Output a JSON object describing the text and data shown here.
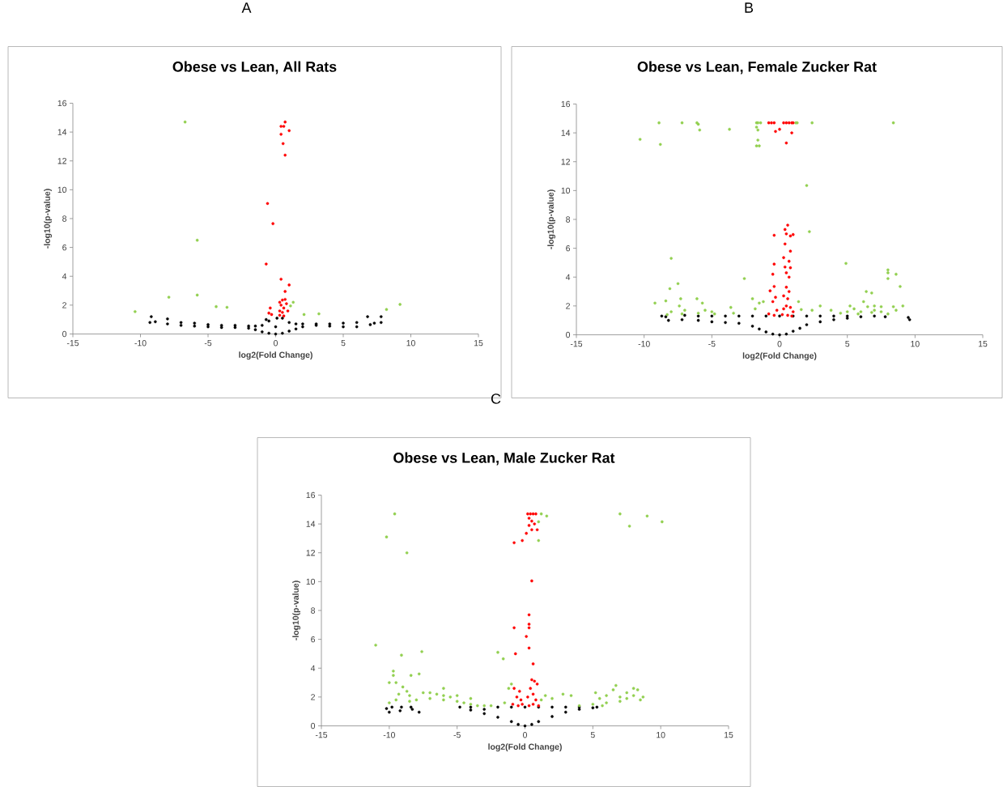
{
  "chart_data": [
    {
      "type": "scatter",
      "title": "Obese vs Lean, All Rats",
      "xlabel": "log2(Fold Change)",
      "ylabel": "-log10(p-value)",
      "annotations": [
        "A"
      ],
      "xlim": [
        -15,
        15
      ],
      "ylim": [
        0,
        16
      ],
      "xticks": [
        -15,
        -10,
        -5,
        0,
        5,
        10,
        15
      ],
      "yticks": [
        0,
        2,
        4,
        6,
        8,
        10,
        12,
        14,
        16
      ],
      "marker": "circle",
      "series": [
        {
          "color": "#000000",
          "x": [
            -9.2,
            -9.3,
            -8.9,
            -8.0,
            -8,
            -7,
            -7,
            -6,
            -6,
            -5,
            -5,
            -4,
            -4,
            -3,
            -3,
            -2,
            -2,
            -1.5,
            -1.5,
            -1,
            -1,
            -0.7,
            -0.5,
            -0.5,
            0,
            0,
            0.1,
            0.5,
            0.5,
            1,
            1,
            1.5,
            1.5,
            2,
            2,
            3,
            3,
            4,
            4,
            5,
            5,
            6,
            6,
            6.8,
            7,
            7.3,
            7.8,
            7.8
          ],
          "values": [
            1.2,
            0.8,
            0.85,
            1.05,
            0.7,
            0.6,
            0.8,
            0.55,
            0.75,
            0.5,
            0.65,
            0.45,
            0.6,
            0.45,
            0.6,
            0.4,
            0.55,
            0.3,
            0.55,
            0.15,
            0.6,
            1.0,
            0.05,
            0.9,
            0,
            0.5,
            1.1,
            0.05,
            1.1,
            0.2,
            0.8,
            0.35,
            0.7,
            0.5,
            0.7,
            0.6,
            0.7,
            0.55,
            0.7,
            0.5,
            0.75,
            0.5,
            0.8,
            1.2,
            0.65,
            0.75,
            1.2,
            0.8
          ]
        },
        {
          "color": "#92d050",
          "x": [
            -6.7,
            -5.8,
            -5.8,
            -7.9,
            -10.4,
            -4.4,
            -3.6,
            1.1,
            1.3,
            2.1,
            3.2,
            8.2,
            9.2
          ],
          "values": [
            14.7,
            6.5,
            2.7,
            2.55,
            1.55,
            1.9,
            1.85,
            1.95,
            2.2,
            1.35,
            1.4,
            1.7,
            2.05
          ]
        },
        {
          "color": "#ff0000",
          "x": [
            0.7,
            0.4,
            0.6,
            0.4,
            1.0,
            0.55,
            0.7,
            -0.6,
            -0.2,
            -0.7,
            0.4,
            1.0,
            0.7,
            0.5,
            0.3,
            0.7,
            0.4,
            0.6,
            0.3,
            0.8,
            0.5,
            0.3,
            -0.4,
            -0.5,
            -0.3,
            0.6,
            0.9
          ],
          "values": [
            14.7,
            14.4,
            14.4,
            13.85,
            14.1,
            13.2,
            12.4,
            9.05,
            7.65,
            4.85,
            3.8,
            3.4,
            2.95,
            2.35,
            2.2,
            2.4,
            2.0,
            1.8,
            1.6,
            2.1,
            1.5,
            1.3,
            1.8,
            1.45,
            1.35,
            1.25,
            1.6
          ]
        }
      ]
    },
    {
      "type": "scatter",
      "title": "Obese vs Lean, Female Zucker Rat",
      "xlabel": "log2(Fold Change)",
      "ylabel": "-log10(p-value)",
      "annotations": [
        "B"
      ],
      "xlim": [
        -15,
        15
      ],
      "ylim": [
        0,
        16
      ],
      "xticks": [
        -15,
        -10,
        -5,
        0,
        5,
        10,
        15
      ],
      "yticks": [
        0,
        2,
        4,
        6,
        8,
        10,
        12,
        14,
        16
      ],
      "marker": "circle",
      "series": [
        {
          "color": "#000000",
          "x": [
            -8.7,
            -8.4,
            -8.2,
            -7.2,
            -7,
            -6,
            -6,
            -5,
            -5,
            -4,
            -4,
            -3,
            -3,
            -2,
            -2,
            -1.5,
            -1,
            -1,
            -0.5,
            0,
            0,
            0.5,
            1,
            1,
            1.5,
            2,
            2,
            3,
            3,
            4,
            4,
            5,
            5,
            6,
            7,
            7.8,
            9.5,
            9.6
          ],
          "values": [
            1.3,
            1.25,
            1.0,
            1.05,
            1.35,
            1.0,
            1.3,
            0.9,
            1.3,
            0.85,
            1.3,
            0.8,
            1.3,
            0.6,
            1.3,
            0.4,
            0.2,
            1.3,
            0.05,
            0,
            1.3,
            0.05,
            0.25,
            1.3,
            0.45,
            0.7,
            1.3,
            0.9,
            1.3,
            1.05,
            1.3,
            1.15,
            1.3,
            1.25,
            1.3,
            1.25,
            1.2,
            1.05
          ]
        },
        {
          "color": "#92d050",
          "x": [
            -8.9,
            -7.2,
            -6.1,
            -6.0,
            -1.7,
            -1.6,
            -1.4,
            1.2,
            1.3,
            2.4,
            8.4,
            -10.3,
            -8.8,
            -5.9,
            -3.7,
            -1.7,
            -1.6,
            -1.6,
            -1.7,
            -1.5,
            2.0,
            2.2,
            -8.0,
            -7.5,
            -8.1,
            -2.6,
            4.9,
            8.0,
            8.0,
            8.0,
            8.6,
            8.9,
            6.4,
            6.8,
            -9.2,
            -8.4,
            -7.3,
            -7.4,
            -7.0,
            -7.2,
            -8.0,
            -8.3,
            -6.1,
            -5.7,
            -5.5,
            -5,
            -4.8,
            -6,
            -3.6,
            -3.4,
            -2.0,
            -1.8,
            -1.5,
            -1.2,
            1.4,
            1.6,
            2.4,
            3,
            3.8,
            5,
            5.2,
            5.5,
            6,
            6.2,
            6.5,
            7,
            7,
            7.5,
            7.5,
            8,
            8.4,
            8.6,
            9.1,
            4.5,
            5.8,
            6.8
          ],
          "values": [
            14.7,
            14.7,
            14.7,
            14.6,
            14.7,
            14.7,
            14.7,
            14.7,
            14.7,
            14.7,
            14.7,
            13.55,
            13.2,
            14.2,
            14.25,
            14.4,
            14.2,
            13.5,
            13.1,
            13.1,
            10.35,
            7.15,
            5.3,
            3.55,
            3.2,
            3.9,
            4.95,
            4.5,
            4.3,
            3.9,
            4.2,
            3.35,
            3.0,
            2.9,
            2.2,
            2.35,
            2.5,
            2.0,
            1.7,
            1.45,
            1.6,
            1.4,
            2.5,
            2.2,
            1.7,
            1.6,
            1.45,
            1.5,
            1.9,
            1.5,
            2.5,
            1.8,
            2.2,
            2.3,
            2.3,
            1.75,
            1.7,
            2.0,
            1.7,
            1.6,
            2.0,
            1.8,
            1.6,
            2.3,
            1.95,
            2.0,
            1.7,
            1.6,
            1.95,
            1.45,
            1.95,
            1.7,
            2.0,
            1.5,
            1.45,
            1.55
          ]
        },
        {
          "color": "#ff0000",
          "x": [
            -0.8,
            -0.6,
            -0.4,
            0.3,
            0.5,
            0.7,
            0.9,
            1.0,
            0.0,
            -0.3,
            0.9,
            0.5,
            0.6,
            0.4,
            0.5,
            -0.4,
            1.0,
            0.8,
            0.4,
            0.8,
            0.3,
            0.7,
            -0.4,
            0.4,
            0.8,
            0.5,
            -0.5,
            0.7,
            -0.4,
            0.5,
            0.7,
            -0.7,
            0.3,
            0.6,
            -0.3,
            -0.5,
            0.5,
            0.8,
            0.3,
            1.0,
            -0.2,
            -0.8,
            0.2,
            0.6,
            -0.4,
            0.9
          ],
          "values": [
            14.7,
            14.7,
            14.7,
            14.7,
            14.7,
            14.7,
            14.7,
            14.7,
            14.25,
            14.1,
            14.0,
            13.3,
            7.6,
            7.3,
            7.0,
            6.9,
            6.95,
            6.85,
            6.3,
            5.8,
            5.35,
            5.1,
            4.9,
            4.7,
            4.65,
            4.3,
            4.2,
            4.0,
            3.35,
            3.3,
            3.0,
            3.05,
            2.7,
            2.5,
            2.6,
            2.3,
            2.0,
            1.9,
            1.8,
            1.6,
            1.7,
            1.45,
            1.4,
            1.35,
            1.35,
            1.3
          ]
        }
      ]
    },
    {
      "type": "scatter",
      "title": "Obese vs Lean, Male Zucker Rat",
      "xlabel": "log2(Fold Change)",
      "ylabel": "-log10(p-value)",
      "annotations": [
        "C"
      ],
      "xlim": [
        -15,
        15
      ],
      "ylim": [
        0,
        16
      ],
      "xticks": [
        -15,
        -10,
        -5,
        0,
        5,
        10,
        15
      ],
      "yticks": [
        0,
        2,
        4,
        6,
        8,
        10,
        12,
        14,
        16
      ],
      "marker": "circle",
      "series": [
        {
          "color": "#000000",
          "x": [
            -10.2,
            -10,
            -9.8,
            -9.1,
            -9.2,
            -8.4,
            -8.3,
            -7.8,
            -4.8,
            -4,
            -4,
            -3,
            -3,
            -2,
            -2,
            -1,
            -1,
            -0.5,
            0,
            0,
            0.5,
            1,
            1,
            2,
            2,
            3,
            3,
            4,
            4,
            5,
            5.3
          ],
          "values": [
            1.2,
            0.95,
            1.3,
            1.3,
            1.05,
            1.3,
            1.15,
            0.95,
            1.3,
            1.1,
            1.3,
            0.85,
            1.15,
            0.6,
            1.3,
            0.3,
            1.3,
            0.1,
            0,
            1.3,
            0.1,
            0.3,
            1.3,
            0.65,
            1.3,
            0.95,
            1.3,
            1.15,
            1.3,
            1.25,
            1.3
          ]
        },
        {
          "color": "#92d050",
          "x": [
            -9.6,
            -10.2,
            -8.7,
            -11,
            -9.1,
            -7.6,
            -2.0,
            -1.6,
            1.2,
            1.6,
            1.0,
            1.0,
            7.0,
            9.0,
            10.1,
            7.7,
            -9.7,
            -9.7,
            -8.4,
            -7.8,
            -9.5,
            -10,
            -9,
            -8.7,
            -8.5,
            -9.3,
            -10,
            -9.5,
            -8.5,
            -8,
            -7.5,
            -7,
            -7,
            -6.5,
            -6,
            -6,
            -6,
            -5.5,
            -5,
            -5,
            -4.5,
            -4,
            -4,
            -3.5,
            -3,
            -2.5,
            -1.5,
            -1.2,
            -1.0,
            1.2,
            1.5,
            2.0,
            2.8,
            3.4,
            4,
            5,
            5.2,
            5.5,
            6,
            6.5,
            6.7,
            7,
            7,
            7.5,
            7.5,
            8,
            8,
            8.3,
            8.5,
            8.7,
            6,
            5.7
          ],
          "values": [
            14.7,
            13.1,
            12.0,
            5.6,
            4.9,
            5.15,
            5.1,
            4.65,
            14.7,
            14.55,
            14.15,
            12.85,
            14.7,
            14.55,
            14.15,
            13.85,
            3.8,
            3.5,
            3.5,
            3.6,
            3.0,
            3.0,
            2.7,
            2.4,
            2.1,
            2.2,
            1.6,
            1.8,
            1.7,
            1.8,
            2.3,
            2.3,
            1.9,
            2.2,
            2.1,
            2.6,
            1.8,
            2.0,
            1.7,
            2.1,
            1.6,
            1.5,
            1.9,
            1.4,
            1.4,
            1.4,
            1.6,
            2.6,
            2.9,
            1.8,
            2.1,
            1.9,
            2.2,
            2.1,
            1.4,
            1.5,
            2.3,
            1.9,
            2.1,
            2.5,
            2.8,
            2.0,
            1.7,
            2.3,
            1.9,
            2.6,
            2.1,
            2.5,
            1.8,
            2.0,
            1.6,
            1.4
          ]
        },
        {
          "color": "#ff0000",
          "x": [
            0.2,
            0.4,
            0.6,
            0.8,
            0.3,
            0.5,
            0.7,
            0.3,
            0.9,
            0.5,
            0.1,
            -0.8,
            -0.2,
            0.5,
            0.3,
            0.3,
            0.3,
            -0.8,
            0.1,
            0.3,
            -0.7,
            0.6,
            0.5,
            0.7,
            0.9,
            -0.8,
            -0.4,
            0.4,
            0.6,
            -0.6,
            -0.3,
            0.2,
            0.8,
            -0.9,
            -0.5,
            0.3,
            1.0,
            -0.2,
            0.6
          ],
          "values": [
            14.7,
            14.7,
            14.7,
            14.7,
            14.4,
            14.2,
            14.0,
            13.9,
            13.6,
            13.6,
            13.35,
            12.7,
            12.85,
            10.05,
            7.7,
            7.05,
            6.8,
            6.8,
            6.2,
            5.4,
            5.0,
            4.3,
            3.2,
            3.1,
            2.9,
            2.6,
            2.4,
            2.6,
            2.2,
            2.0,
            1.8,
            2.0,
            1.8,
            1.5,
            1.4,
            1.4,
            1.4,
            1.5,
            1.5
          ]
        }
      ]
    }
  ]
}
